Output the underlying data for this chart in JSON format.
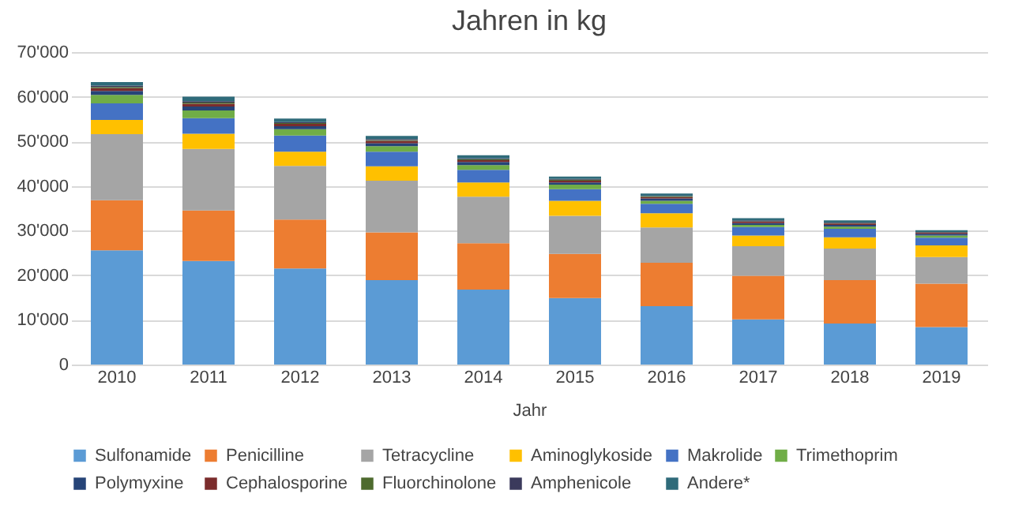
{
  "chart_data": {
    "type": "bar",
    "stacked": true,
    "title": "Jahren in kg",
    "xlabel": "Jahr",
    "categories": [
      "2010",
      "2011",
      "2012",
      "2013",
      "2014",
      "2015",
      "2016",
      "2017",
      "2018",
      "2019"
    ],
    "ylim": [
      0,
      70000
    ],
    "yticks": [
      {
        "value": 0,
        "label": "0"
      },
      {
        "value": 10000,
        "label": "10'000"
      },
      {
        "value": 20000,
        "label": "20'000"
      },
      {
        "value": 30000,
        "label": "30'000"
      },
      {
        "value": 40000,
        "label": "40'000"
      },
      {
        "value": 50000,
        "label": "50'000"
      },
      {
        "value": 60000,
        "label": "60'000"
      },
      {
        "value": 70000,
        "label": "70'000"
      }
    ],
    "grid": "y",
    "legend": "bottom",
    "series": [
      {
        "name": "Sulfonamide",
        "color": "#5b9bd5",
        "values": [
          25600,
          23200,
          21500,
          18900,
          16800,
          14900,
          13100,
          10100,
          9200,
          8400
        ]
      },
      {
        "name": "Penicilline",
        "color": "#ed7d31",
        "values": [
          11200,
          11300,
          11000,
          10700,
          10400,
          9900,
          9700,
          9800,
          9700,
          9700
        ]
      },
      {
        "name": "Tetracycline",
        "color": "#a5a5a5",
        "values": [
          14800,
          13800,
          12000,
          11600,
          10400,
          8500,
          7900,
          6600,
          7100,
          6000
        ]
      },
      {
        "name": "Aminoglykoside",
        "color": "#ffc000",
        "values": [
          3200,
          3400,
          3200,
          3200,
          3200,
          3400,
          3200,
          2400,
          2500,
          2600
        ]
      },
      {
        "name": "Makrolide",
        "color": "#4472c4",
        "values": [
          3700,
          3500,
          3600,
          3300,
          2800,
          2600,
          2100,
          1900,
          1900,
          1700
        ]
      },
      {
        "name": "Trimethoprim",
        "color": "#70ad47",
        "values": [
          1900,
          1700,
          1400,
          1200,
          1100,
          1000,
          700,
          500,
          500,
          500
        ]
      },
      {
        "name": "Polymyxine",
        "color": "#264478",
        "values": [
          900,
          900,
          700,
          700,
          700,
          500,
          500,
          400,
          400,
          400
        ]
      },
      {
        "name": "Cephalosporine",
        "color": "#7b2c2c",
        "values": [
          600,
          600,
          500,
          500,
          400,
          400,
          300,
          300,
          300,
          200
        ]
      },
      {
        "name": "Fluorchinolone",
        "color": "#4e6b2e",
        "values": [
          300,
          300,
          200,
          200,
          200,
          200,
          200,
          100,
          100,
          100
        ]
      },
      {
        "name": "Amphenicole",
        "color": "#3b3a5c",
        "values": [
          300,
          300,
          200,
          200,
          200,
          200,
          100,
          200,
          100,
          100
        ]
      },
      {
        "name": "Andere*",
        "color": "#2f6b7a",
        "values": [
          800,
          1000,
          800,
          700,
          700,
          500,
          500,
          500,
          500,
          400
        ]
      }
    ]
  }
}
